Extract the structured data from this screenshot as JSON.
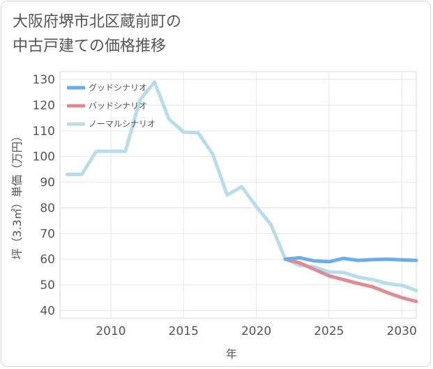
{
  "chart_data": {
    "type": "line",
    "title": "大阪府堺市北区蔵前町の中古戸建ての価格推移",
    "title_lines": [
      "大阪府堺市北区蔵前町の",
      "中古戸建ての価格推移"
    ],
    "xlabel": "年",
    "ylabel": "坪（3.3㎡）単価（万円）",
    "xlim": [
      2006.5,
      2031
    ],
    "ylim": [
      37,
      133
    ],
    "x_ticks": [
      2010,
      2015,
      2020,
      2025,
      2030
    ],
    "y_ticks": [
      40,
      50,
      60,
      70,
      80,
      90,
      100,
      110,
      120,
      130
    ],
    "grid": true,
    "legend_position": "top-left",
    "series": [
      {
        "name": "グッドシナリオ",
        "color": "#6aaee8",
        "x": [
          2022,
          2023,
          2024,
          2025,
          2026,
          2027,
          2028,
          2029,
          2030,
          2031
        ],
        "values": [
          60,
          60.5,
          59.3,
          59,
          60.3,
          59.5,
          59.8,
          60,
          59.7,
          59.5
        ]
      },
      {
        "name": "バッドシナリオ",
        "color": "#e08a93",
        "x": [
          2022,
          2023,
          2024,
          2025,
          2026,
          2027,
          2028,
          2029,
          2030,
          2031
        ],
        "values": [
          60,
          58.5,
          56,
          53.5,
          52,
          50.5,
          49.2,
          47,
          45,
          43.5
        ]
      },
      {
        "name": "ノーマルシナリオ",
        "color": "#b7dcea",
        "x": [
          2007,
          2008,
          2009,
          2010,
          2011,
          2012,
          2013,
          2014,
          2015,
          2016,
          2017,
          2018,
          2019,
          2020,
          2021,
          2022,
          2023,
          2024,
          2025,
          2026,
          2027,
          2028,
          2029,
          2030,
          2031
        ],
        "values": [
          93,
          93,
          102,
          102,
          102,
          122,
          129,
          114.5,
          109.5,
          109.2,
          101,
          85,
          88.2,
          80.5,
          73.5,
          60,
          57.5,
          57,
          55,
          54.8,
          53,
          52,
          50.5,
          49.8,
          47.8
        ]
      }
    ]
  }
}
